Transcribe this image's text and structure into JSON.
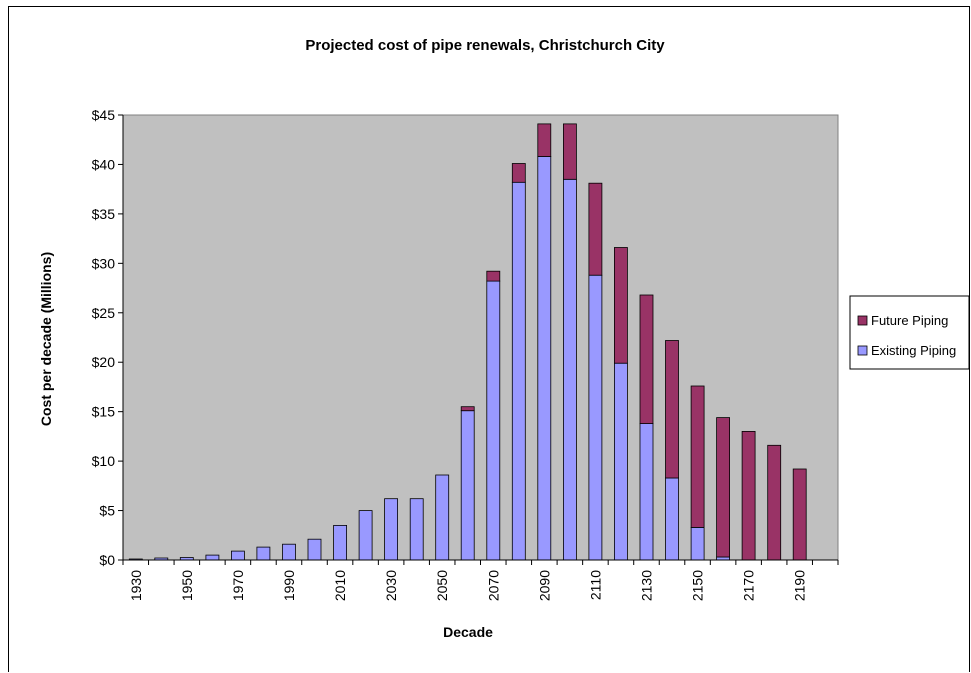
{
  "chart_data": {
    "type": "bar",
    "stacked": true,
    "title": "Projected cost of pipe renewals, Christchurch City",
    "xlabel": "Decade",
    "ylabel": "Cost per decade (Millions)",
    "ylim": [
      0,
      45
    ],
    "y_ticks": [
      "$0",
      "$5",
      "$10",
      "$15",
      "$20",
      "$25",
      "$30",
      "$35",
      "$40",
      "$45"
    ],
    "y_tick_values": [
      0,
      5,
      10,
      15,
      20,
      25,
      30,
      35,
      40,
      45
    ],
    "categories": [
      "1930",
      "1940",
      "1950",
      "1960",
      "1970",
      "1980",
      "1990",
      "2000",
      "2010",
      "2020",
      "2030",
      "2040",
      "2050",
      "2060",
      "2070",
      "2080",
      "2090",
      "2100",
      "2110",
      "2120",
      "2130",
      "2140",
      "2150",
      "2160",
      "2170",
      "2180",
      "2190",
      "2200"
    ],
    "x_tick_labels": [
      "1930",
      "1950",
      "1970",
      "1990",
      "2010",
      "2030",
      "2050",
      "2070",
      "2090",
      "2110",
      "2130",
      "2150",
      "2170",
      "2190"
    ],
    "grid": false,
    "legend_position": "right",
    "plot_background": "#c0c0c0",
    "series": [
      {
        "name": "Existing Piping",
        "color": "#9999ff",
        "values": [
          0.1,
          0.2,
          0.25,
          0.5,
          0.9,
          1.3,
          1.6,
          2.1,
          3.5,
          5.0,
          6.2,
          6.2,
          8.6,
          15.1,
          28.2,
          38.2,
          40.8,
          38.5,
          28.8,
          19.9,
          13.8,
          8.3,
          3.3,
          0.3,
          0,
          0,
          0,
          0
        ]
      },
      {
        "name": "Future Piping",
        "color": "#993366",
        "values": [
          0,
          0,
          0,
          0,
          0,
          0,
          0,
          0,
          0,
          0,
          0,
          0,
          0,
          0.4,
          1.0,
          1.9,
          3.3,
          5.6,
          9.3,
          11.7,
          13.0,
          13.9,
          14.3,
          14.1,
          13.0,
          11.6,
          9.2,
          0
        ]
      }
    ]
  },
  "legend": {
    "future_label": "Future Piping",
    "existing_label": "Existing Piping"
  }
}
